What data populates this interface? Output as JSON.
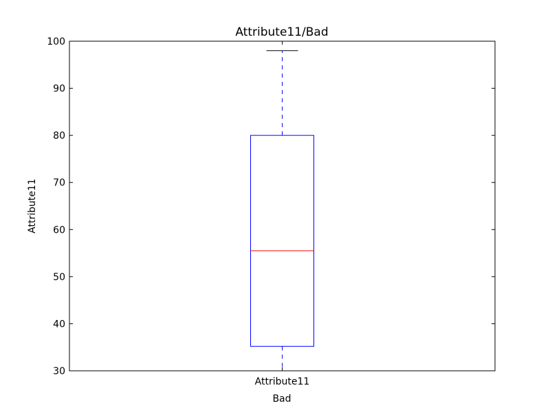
{
  "chart_data": {
    "type": "box",
    "title": "Attribute11/Bad",
    "xlabel": "Bad",
    "ylabel": "Attribute11",
    "categories": [
      "Attribute11"
    ],
    "ylim": [
      30,
      100
    ],
    "yticks": [
      30,
      40,
      50,
      60,
      70,
      80,
      90,
      100
    ],
    "grid": false,
    "boxes": [
      {
        "category": "Attribute11",
        "whisker_low": 30,
        "q1": 35.2,
        "median": 55.5,
        "q3": 80,
        "whisker_high": 98
      }
    ],
    "colors": {
      "box": "#0000ff",
      "median": "#ff0000",
      "whisker": "#0000ff",
      "cap": "#000000"
    }
  }
}
